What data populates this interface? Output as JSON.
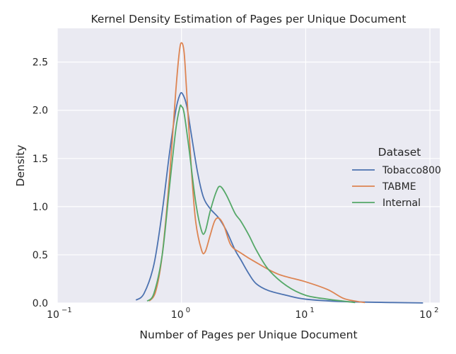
{
  "chart_data": {
    "type": "line",
    "title": "Kernel Density Estimation of Pages per Unique Document",
    "xlabel": "Number of Pages per Unique Document",
    "ylabel": "Density",
    "xscale": "log",
    "xlim": [
      0.1,
      120
    ],
    "ylim": [
      0,
      2.85
    ],
    "grid": true,
    "x_ticks": [
      {
        "value": 0.1,
        "label": "10",
        "exp": "−1"
      },
      {
        "value": 1,
        "label": "10",
        "exp": "0"
      },
      {
        "value": 10,
        "label": "10",
        "exp": "1"
      },
      {
        "value": 100,
        "label": "10",
        "exp": "2"
      }
    ],
    "y_ticks": [
      {
        "value": 0,
        "label": "0.0"
      },
      {
        "value": 0.5,
        "label": "0.5"
      },
      {
        "value": 1,
        "label": "1.0"
      },
      {
        "value": 1.5,
        "label": "1.5"
      },
      {
        "value": 2,
        "label": "2.0"
      },
      {
        "value": 2.5,
        "label": "2.5"
      }
    ],
    "legend": {
      "title": "Dataset",
      "placement": "center-right"
    },
    "series": [
      {
        "name": "Tobacco800",
        "color": "#4c72b0",
        "points": [
          [
            0.43,
            0.03
          ],
          [
            0.5,
            0.1
          ],
          [
            0.6,
            0.4
          ],
          [
            0.7,
            0.95
          ],
          [
            0.8,
            1.55
          ],
          [
            0.9,
            2.0
          ],
          [
            0.97,
            2.16
          ],
          [
            1.02,
            2.17
          ],
          [
            1.1,
            2.05
          ],
          [
            1.2,
            1.75
          ],
          [
            1.35,
            1.35
          ],
          [
            1.5,
            1.1
          ],
          [
            1.7,
            0.98
          ],
          [
            2.0,
            0.88
          ],
          [
            2.3,
            0.75
          ],
          [
            2.7,
            0.55
          ],
          [
            3.0,
            0.45
          ],
          [
            3.5,
            0.3
          ],
          [
            4.0,
            0.2
          ],
          [
            5.0,
            0.13
          ],
          [
            7.0,
            0.08
          ],
          [
            10.0,
            0.04
          ],
          [
            20.0,
            0.015
          ],
          [
            50.0,
            0.005
          ],
          [
            88.0,
            0.001
          ]
        ]
      },
      {
        "name": "TABME",
        "color": "#dd8452",
        "points": [
          [
            0.55,
            0.02
          ],
          [
            0.62,
            0.12
          ],
          [
            0.7,
            0.5
          ],
          [
            0.8,
            1.3
          ],
          [
            0.9,
            2.2
          ],
          [
            0.96,
            2.6
          ],
          [
            1.0,
            2.7
          ],
          [
            1.05,
            2.6
          ],
          [
            1.1,
            2.2
          ],
          [
            1.2,
            1.4
          ],
          [
            1.3,
            0.85
          ],
          [
            1.45,
            0.55
          ],
          [
            1.55,
            0.53
          ],
          [
            1.7,
            0.7
          ],
          [
            1.85,
            0.85
          ],
          [
            2.0,
            0.88
          ],
          [
            2.2,
            0.8
          ],
          [
            2.5,
            0.6
          ],
          [
            3.0,
            0.52
          ],
          [
            4.0,
            0.42
          ],
          [
            6.0,
            0.3
          ],
          [
            10.0,
            0.22
          ],
          [
            15.0,
            0.14
          ],
          [
            20.0,
            0.05
          ],
          [
            25.0,
            0.02
          ],
          [
            30.0,
            0.005
          ]
        ]
      },
      {
        "name": "Internal",
        "color": "#55a868",
        "points": [
          [
            0.53,
            0.02
          ],
          [
            0.6,
            0.1
          ],
          [
            0.7,
            0.5
          ],
          [
            0.8,
            1.2
          ],
          [
            0.9,
            1.8
          ],
          [
            0.97,
            2.03
          ],
          [
            1.0,
            2.04
          ],
          [
            1.05,
            1.97
          ],
          [
            1.15,
            1.6
          ],
          [
            1.3,
            1.05
          ],
          [
            1.45,
            0.75
          ],
          [
            1.55,
            0.74
          ],
          [
            1.7,
            0.95
          ],
          [
            1.9,
            1.15
          ],
          [
            2.05,
            1.21
          ],
          [
            2.3,
            1.12
          ],
          [
            2.7,
            0.93
          ],
          [
            3.0,
            0.85
          ],
          [
            3.5,
            0.7
          ],
          [
            4.0,
            0.55
          ],
          [
            5.0,
            0.35
          ],
          [
            7.0,
            0.18
          ],
          [
            10.0,
            0.08
          ],
          [
            15.0,
            0.04
          ],
          [
            20.0,
            0.02
          ],
          [
            25.0,
            0.005
          ]
        ]
      }
    ]
  }
}
